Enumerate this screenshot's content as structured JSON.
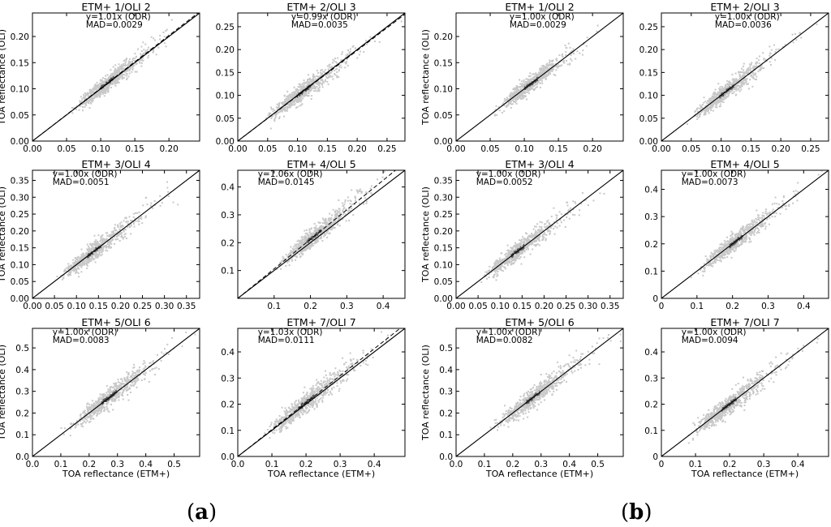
{
  "figure": {
    "panel_labels": [
      "a",
      "b"
    ],
    "y_axis_label": "TOA reflectance (OLI)",
    "x_axis_label": "TOA reflectance (ETM+)"
  },
  "chart_data": [
    {
      "type": "scatter",
      "group": "a",
      "title": "ETM+ 1/OLI 2",
      "fit_label": "y=1.01x (ODR)",
      "mad_label": "MAD=0.0029",
      "slope": 1.01,
      "xlim": [
        0,
        0.245
      ],
      "ylim": [
        0,
        0.245
      ],
      "xticks": [
        "0.00",
        "0.05",
        "0.10",
        "0.15",
        "0.20"
      ],
      "yticks": [
        "0.00",
        "0.05",
        "0.10",
        "0.15",
        "0.20"
      ],
      "tick_values": [
        0,
        0.05,
        0.1,
        0.15,
        0.2
      ],
      "center": 0.11,
      "spread": 0.028,
      "ylabel": "TOA reflectance (OLI)",
      "xlabel": ""
    },
    {
      "type": "scatter",
      "group": "a",
      "title": "ETM+ 2/OLI 3",
      "fit_label": "y=0.99x (ODR)",
      "mad_label": "MAD=0.0035",
      "slope": 0.99,
      "xlim": [
        0,
        0.28
      ],
      "ylim": [
        0,
        0.28
      ],
      "xticks": [
        "0.00",
        "0.05",
        "0.10",
        "0.15",
        "0.20",
        "0.25"
      ],
      "yticks": [
        "0.00",
        "0.05",
        "0.10",
        "0.15",
        "0.20",
        "0.25"
      ],
      "tick_values": [
        0,
        0.05,
        0.1,
        0.15,
        0.2,
        0.25
      ],
      "center": 0.11,
      "spread": 0.034,
      "ylabel": "",
      "xlabel": ""
    },
    {
      "type": "scatter",
      "group": "b",
      "title": "ETM+ 1/OLI 2",
      "fit_label": "y=1.00x (ODR)",
      "mad_label": "MAD=0.0029",
      "slope": 1.0,
      "xlim": [
        0,
        0.245
      ],
      "ylim": [
        0,
        0.245
      ],
      "xticks": [
        "0.00",
        "0.05",
        "0.10",
        "0.15",
        "0.20"
      ],
      "yticks": [
        "0.00",
        "0.05",
        "0.10",
        "0.15",
        "0.20"
      ],
      "tick_values": [
        0,
        0.05,
        0.1,
        0.15,
        0.2
      ],
      "center": 0.11,
      "spread": 0.028,
      "ylabel": "TOA reflectance (OLI)",
      "xlabel": ""
    },
    {
      "type": "scatter",
      "group": "b",
      "title": "ETM+ 2/OLI 3",
      "fit_label": "y=1.00x (ODR)",
      "mad_label": "MAD=0.0036",
      "slope": 1.0,
      "xlim": [
        0,
        0.28
      ],
      "ylim": [
        0,
        0.28
      ],
      "xticks": [
        "0.00",
        "0.05",
        "0.10",
        "0.15",
        "0.20",
        "0.25"
      ],
      "yticks": [
        "0.00",
        "0.05",
        "0.10",
        "0.15",
        "0.20",
        "0.25"
      ],
      "tick_values": [
        0,
        0.05,
        0.1,
        0.15,
        0.2,
        0.25
      ],
      "center": 0.11,
      "spread": 0.034,
      "ylabel": "",
      "xlabel": ""
    },
    {
      "type": "scatter",
      "group": "a",
      "title": "ETM+ 3/OLI 4",
      "fit_label": "y=1.00x (ODR)",
      "mad_label": "MAD=0.0051",
      "slope": 1.0,
      "xlim": [
        0,
        0.38
      ],
      "ylim": [
        0,
        0.38
      ],
      "xticks": [
        "0.00",
        "0.05",
        "0.10",
        "0.15",
        "0.20",
        "0.25",
        "0.30",
        "0.35"
      ],
      "yticks": [
        "0.00",
        "0.05",
        "0.10",
        "0.15",
        "0.20",
        "0.25",
        "0.30",
        "0.35"
      ],
      "tick_values": [
        0,
        0.05,
        0.1,
        0.15,
        0.2,
        0.25,
        0.3,
        0.35
      ],
      "center": 0.14,
      "spread": 0.045,
      "ylabel": "TOA reflectance (OLI)",
      "xlabel": ""
    },
    {
      "type": "scatter",
      "group": "a",
      "title": "ETM+ 4/OLI 5",
      "fit_label": "y=1.06x (ODR)",
      "mad_label": "MAD=0.0145",
      "slope": 1.06,
      "xlim": [
        0,
        0.46
      ],
      "ylim": [
        0,
        0.46
      ],
      "xticks": [
        "0.1",
        "0.2",
        "0.3",
        "0.4"
      ],
      "yticks": [
        "0.1",
        "0.2",
        "0.3",
        "0.4"
      ],
      "tick_values": [
        0.1,
        0.2,
        0.3,
        0.4
      ],
      "center": 0.21,
      "spread": 0.055,
      "ylabel": "",
      "xlabel": ""
    },
    {
      "type": "scatter",
      "group": "b",
      "title": "ETM+ 3/OLI 4",
      "fit_label": "y=1.00x (ODR)",
      "mad_label": "MAD=0.0052",
      "slope": 1.0,
      "xlim": [
        0,
        0.38
      ],
      "ylim": [
        0,
        0.38
      ],
      "xticks": [
        "0.00",
        "0.05",
        "0.10",
        "0.15",
        "0.20",
        "0.25",
        "0.30",
        "0.35"
      ],
      "yticks": [
        "0.00",
        "0.05",
        "0.10",
        "0.15",
        "0.20",
        "0.25",
        "0.30",
        "0.35"
      ],
      "tick_values": [
        0,
        0.05,
        0.1,
        0.15,
        0.2,
        0.25,
        0.3,
        0.35
      ],
      "center": 0.14,
      "spread": 0.045,
      "ylabel": "TOA reflectance (OLI)",
      "xlabel": ""
    },
    {
      "type": "scatter",
      "group": "b",
      "title": "ETM+ 4/OLI 5",
      "fit_label": "y=1.00x (ODR)",
      "mad_label": "MAD=0.0073",
      "slope": 1.0,
      "xlim": [
        0,
        0.47
      ],
      "ylim": [
        0,
        0.47
      ],
      "xticks": [
        "0",
        "0.1",
        "0.2",
        "0.3",
        "0.4"
      ],
      "yticks": [
        "0",
        "0.1",
        "0.2",
        "0.3",
        "0.4"
      ],
      "tick_values": [
        0,
        0.1,
        0.2,
        0.3,
        0.4
      ],
      "center": 0.21,
      "spread": 0.055,
      "ylabel": "",
      "xlabel": ""
    },
    {
      "type": "scatter",
      "group": "a",
      "title": "ETM+ 5/OLI 6",
      "fit_label": "y=1.00x (ODR)",
      "mad_label": "MAD=0.0083",
      "slope": 1.0,
      "xlim": [
        0,
        0.59
      ],
      "ylim": [
        0,
        0.59
      ],
      "xticks": [
        "0.0",
        "0.1",
        "0.2",
        "0.3",
        "0.4",
        "0.5"
      ],
      "yticks": [
        "0.0",
        "0.1",
        "0.2",
        "0.3",
        "0.4",
        "0.5"
      ],
      "tick_values": [
        0,
        0.1,
        0.2,
        0.3,
        0.4,
        0.5
      ],
      "center": 0.27,
      "spread": 0.075,
      "ylabel": "TOA reflectance (OLI)",
      "xlabel": "TOA reflectance (ETM+)"
    },
    {
      "type": "scatter",
      "group": "a",
      "title": "ETM+ 7/OLI 7",
      "fit_label": "y=1.03x (ODR)",
      "mad_label": "MAD=0.0111",
      "slope": 1.03,
      "xlim": [
        0,
        0.49
      ],
      "ylim": [
        0,
        0.49
      ],
      "xticks": [
        "0.0",
        "0.1",
        "0.2",
        "0.3",
        "0.4"
      ],
      "yticks": [
        "0.0",
        "0.1",
        "0.2",
        "0.3",
        "0.4"
      ],
      "tick_values": [
        0,
        0.1,
        0.2,
        0.3,
        0.4
      ],
      "center": 0.2,
      "spread": 0.07,
      "ylabel": "",
      "xlabel": "TOA reflectance (ETM+)"
    },
    {
      "type": "scatter",
      "group": "b",
      "title": "ETM+ 5/OLI 6",
      "fit_label": "y=1.00x (ODR)",
      "mad_label": "MAD=0.0082",
      "slope": 1.0,
      "xlim": [
        0,
        0.59
      ],
      "ylim": [
        0,
        0.59
      ],
      "xticks": [
        "0.0",
        "0.1",
        "0.2",
        "0.3",
        "0.4",
        "0.5"
      ],
      "yticks": [
        "0.0",
        "0.1",
        "0.2",
        "0.3",
        "0.4",
        "0.5"
      ],
      "tick_values": [
        0,
        0.1,
        0.2,
        0.3,
        0.4,
        0.5
      ],
      "center": 0.27,
      "spread": 0.075,
      "ylabel": "TOA reflectance (OLI)",
      "xlabel": "TOA reflectance (ETM+)"
    },
    {
      "type": "scatter",
      "group": "b",
      "title": "ETM+ 7/OLI 7",
      "fit_label": "y=1.00x (ODR)",
      "mad_label": "MAD=0.0094",
      "slope": 1.0,
      "xlim": [
        0,
        0.49
      ],
      "ylim": [
        0,
        0.49
      ],
      "xticks": [
        "0",
        "0.1",
        "0.2",
        "0.3",
        "0.4"
      ],
      "yticks": [
        "0",
        "0.1",
        "0.2",
        "0.3",
        "0.4"
      ],
      "tick_values": [
        0,
        0.1,
        0.2,
        0.3,
        0.4
      ],
      "center": 0.2,
      "spread": 0.065,
      "ylabel": "",
      "xlabel": "TOA reflectance (ETM+)"
    }
  ],
  "colors": {
    "points": "#c8c8c8",
    "dense": "#555555",
    "one_to_one": "#000000",
    "fit_line": "#000000"
  }
}
